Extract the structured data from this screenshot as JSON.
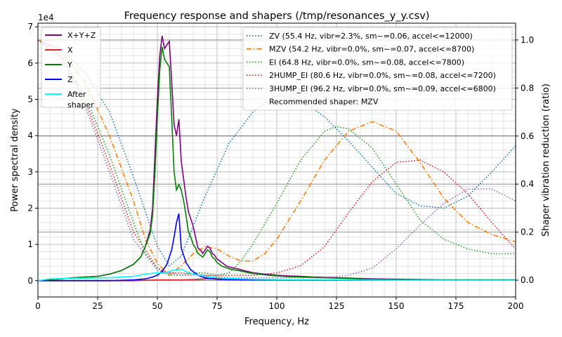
{
  "chart_data": {
    "type": "line",
    "title": "Frequency response and shapers (/tmp/resonances_y_y.csv)",
    "xlabel": "Frequency, Hz",
    "ylabel": "Power spectral density",
    "y2label": "Shaper vibration reduction (ratio)",
    "yexponent": "1e4",
    "xlim": [
      0,
      200
    ],
    "ylim": [
      -0.45,
      7.1
    ],
    "y2lim": [
      -0.07,
      1.07
    ],
    "xticks": [
      0,
      25,
      50,
      75,
      100,
      125,
      150,
      175,
      200
    ],
    "yticks": [
      0,
      1,
      2,
      3,
      4,
      5,
      6,
      7
    ],
    "y2ticks": [
      "0.0",
      "0.2",
      "0.4",
      "0.6",
      "0.8",
      "1.0"
    ],
    "y2tickvalues": [
      0,
      0.2,
      0.4,
      0.6,
      0.8,
      1.0
    ],
    "grid": true,
    "legend_left_placement": "top-left",
    "legend_right_placement": "top-right",
    "psd_series": [
      {
        "name": "X+Y+Z",
        "color": "#800080",
        "x": [
          0,
          5,
          10,
          15,
          20,
          25,
          30,
          35,
          40,
          43,
          45,
          47,
          48,
          49,
          50,
          51,
          52,
          53,
          54,
          55,
          56,
          57,
          58,
          59,
          60,
          61,
          62,
          63,
          64,
          65,
          66,
          67,
          68,
          69,
          70,
          71,
          72,
          73,
          74,
          75,
          76,
          77,
          78,
          79,
          80,
          82,
          84,
          86,
          88,
          90,
          95,
          100,
          105,
          110,
          115,
          120,
          125,
          130,
          135,
          140,
          150,
          160,
          170,
          180,
          190,
          200
        ],
        "y": [
          0,
          0.03,
          0.05,
          0.08,
          0.1,
          0.12,
          0.18,
          0.28,
          0.45,
          0.65,
          0.95,
          1.4,
          2.0,
          3.5,
          5.0,
          6.2,
          6.75,
          6.4,
          6.5,
          6.6,
          5.5,
          4.3,
          4.0,
          4.45,
          3.3,
          2.8,
          2.3,
          1.9,
          1.7,
          1.5,
          1.2,
          0.9,
          0.85,
          0.75,
          0.85,
          0.95,
          0.9,
          0.75,
          0.7,
          0.6,
          0.55,
          0.5,
          0.45,
          0.4,
          0.38,
          0.35,
          0.32,
          0.28,
          0.25,
          0.22,
          0.18,
          0.15,
          0.13,
          0.12,
          0.1,
          0.09,
          0.08,
          0.07,
          0.06,
          0.05,
          0.04,
          0.03,
          0.02,
          0.02,
          0.02,
          0.02
        ]
      },
      {
        "name": "X",
        "color": "#d62728",
        "x": [
          0,
          10,
          20,
          30,
          40,
          45,
          50,
          55,
          60,
          65,
          70,
          75,
          80,
          90,
          100,
          120,
          150,
          200
        ],
        "y": [
          0,
          0,
          0,
          0,
          0,
          0.01,
          0.02,
          0.02,
          0.02,
          0.03,
          0.05,
          0.06,
          0.05,
          0.04,
          0.03,
          0.02,
          0.01,
          0.01
        ]
      },
      {
        "name": "Y",
        "color": "#008000",
        "x": [
          0,
          5,
          10,
          15,
          20,
          25,
          30,
          35,
          40,
          43,
          45,
          47,
          48,
          49,
          50,
          51,
          52,
          53,
          54,
          55,
          56,
          57,
          58,
          59,
          60,
          61,
          62,
          63,
          64,
          65,
          66,
          67,
          68,
          69,
          70,
          71,
          72,
          73,
          74,
          75,
          76,
          77,
          78,
          79,
          80,
          82,
          84,
          86,
          88,
          90,
          95,
          100,
          105,
          110,
          115,
          120,
          125,
          130,
          135,
          140,
          150,
          160,
          170,
          180,
          190,
          200
        ],
        "y": [
          0,
          0.03,
          0.05,
          0.08,
          0.1,
          0.12,
          0.18,
          0.28,
          0.45,
          0.65,
          0.95,
          1.3,
          1.8,
          3.0,
          4.5,
          5.8,
          6.45,
          6.1,
          6.0,
          5.9,
          4.5,
          3.0,
          2.5,
          2.65,
          2.5,
          2.2,
          1.8,
          1.35,
          1.2,
          1.0,
          0.9,
          0.75,
          0.7,
          0.65,
          0.75,
          0.85,
          0.8,
          0.65,
          0.6,
          0.5,
          0.45,
          0.4,
          0.38,
          0.35,
          0.33,
          0.3,
          0.28,
          0.25,
          0.22,
          0.2,
          0.16,
          0.13,
          0.11,
          0.1,
          0.09,
          0.08,
          0.07,
          0.06,
          0.05,
          0.04,
          0.03,
          0.02,
          0.02,
          0.02,
          0.02,
          0.02
        ]
      },
      {
        "name": "Z",
        "color": "#0000ff",
        "x": [
          0,
          10,
          20,
          30,
          40,
          45,
          48,
          50,
          52,
          54,
          56,
          57,
          58,
          59,
          60,
          61,
          62,
          64,
          66,
          68,
          70,
          72,
          75,
          80,
          90,
          100,
          120,
          150,
          200
        ],
        "y": [
          0,
          0,
          0,
          0,
          0.02,
          0.05,
          0.1,
          0.15,
          0.25,
          0.45,
          0.85,
          1.2,
          1.6,
          1.85,
          0.9,
          0.7,
          0.5,
          0.3,
          0.2,
          0.12,
          0.08,
          0.06,
          0.04,
          0.03,
          0.02,
          0.02,
          0.01,
          0.01,
          0.01
        ]
      },
      {
        "name": "After\nshaper",
        "color": "#00ffff",
        "x": [
          0,
          5,
          10,
          20,
          30,
          40,
          45,
          50,
          53,
          55,
          57,
          58,
          60,
          62,
          65,
          70,
          75,
          80,
          90,
          100,
          120,
          150,
          200
        ],
        "y": [
          0,
          0.05,
          0.06,
          0.07,
          0.08,
          0.12,
          0.18,
          0.22,
          0.2,
          0.25,
          0.3,
          0.28,
          0.32,
          0.25,
          0.18,
          0.12,
          0.08,
          0.06,
          0.04,
          0.03,
          0.02,
          0.01,
          0.01
        ]
      }
    ],
    "shaper_series": [
      {
        "name": "ZV (55.4 Hz, vibr=2.3%, sm~=0.06, accel<=12000)",
        "color": "#1f77b4",
        "style": "dotted",
        "x": [
          0,
          10,
          20,
          30,
          40,
          50,
          55,
          60,
          70,
          80,
          90,
          100,
          110,
          120,
          130,
          140,
          150,
          160,
          170,
          180,
          190,
          200
        ],
        "y": [
          1.0,
          0.96,
          0.86,
          0.7,
          0.43,
          0.14,
          0.06,
          0.1,
          0.35,
          0.57,
          0.7,
          0.77,
          0.75,
          0.68,
          0.58,
          0.47,
          0.36,
          0.31,
          0.3,
          0.35,
          0.45,
          0.56
        ]
      },
      {
        "name": "MZV (54.2 Hz, vibr=0.0%, sm~=0.07, accel<=8700)",
        "color": "#ff7f0e",
        "style": "dashdot",
        "x": [
          0,
          10,
          20,
          30,
          40,
          45,
          50,
          55,
          60,
          65,
          70,
          75,
          80,
          85,
          90,
          95,
          100,
          110,
          120,
          130,
          140,
          150,
          160,
          170,
          180,
          190,
          200
        ],
        "y": [
          1.0,
          0.95,
          0.82,
          0.6,
          0.33,
          0.17,
          0.07,
          0.02,
          0.06,
          0.11,
          0.14,
          0.13,
          0.1,
          0.08,
          0.08,
          0.11,
          0.17,
          0.33,
          0.5,
          0.62,
          0.66,
          0.62,
          0.49,
          0.34,
          0.24,
          0.19,
          0.16
        ]
      },
      {
        "name": "EI (64.8 Hz, vibr=0.0%, sm~=0.08, accel<=7800)",
        "color": "#2ca02c",
        "style": "dotted",
        "x": [
          0,
          10,
          20,
          30,
          40,
          45,
          50,
          55,
          60,
          65,
          70,
          75,
          80,
          85,
          90,
          100,
          110,
          120,
          125,
          130,
          140,
          150,
          160,
          170,
          180,
          190,
          200
        ],
        "y": [
          1.0,
          0.93,
          0.76,
          0.52,
          0.24,
          0.11,
          0.05,
          0.02,
          0.02,
          0.03,
          0.03,
          0.02,
          0.03,
          0.08,
          0.15,
          0.32,
          0.5,
          0.62,
          0.64,
          0.63,
          0.55,
          0.4,
          0.25,
          0.17,
          0.13,
          0.11,
          0.11
        ]
      },
      {
        "name": "2HUMP_EI (80.6 Hz, vibr=0.0%, sm~=0.08, accel<=7200)",
        "color": "#d62728",
        "style": "dotted",
        "x": [
          0,
          10,
          20,
          30,
          40,
          50,
          55,
          60,
          70,
          80,
          90,
          100,
          110,
          120,
          130,
          140,
          150,
          160,
          170,
          180,
          190,
          200
        ],
        "y": [
          1.0,
          0.93,
          0.74,
          0.48,
          0.2,
          0.05,
          0.03,
          0.03,
          0.02,
          0.02,
          0.02,
          0.03,
          0.06,
          0.14,
          0.28,
          0.41,
          0.49,
          0.5,
          0.45,
          0.36,
          0.24,
          0.13
        ]
      },
      {
        "name": "3HUMP_EI (96.2 Hz, vibr=0.0%, sm~=0.09, accel<=6800)",
        "color": "#9467bd",
        "style": "dotted",
        "x": [
          0,
          10,
          20,
          30,
          40,
          50,
          60,
          70,
          80,
          90,
          100,
          110,
          120,
          130,
          140,
          150,
          160,
          170,
          180,
          190,
          200
        ],
        "y": [
          1.0,
          0.92,
          0.72,
          0.45,
          0.17,
          0.04,
          0.02,
          0.02,
          0.01,
          0.01,
          0.01,
          0.01,
          0.01,
          0.02,
          0.05,
          0.13,
          0.23,
          0.32,
          0.38,
          0.38,
          0.33
        ]
      }
    ],
    "annotation": "Recommended shaper: MZV"
  }
}
